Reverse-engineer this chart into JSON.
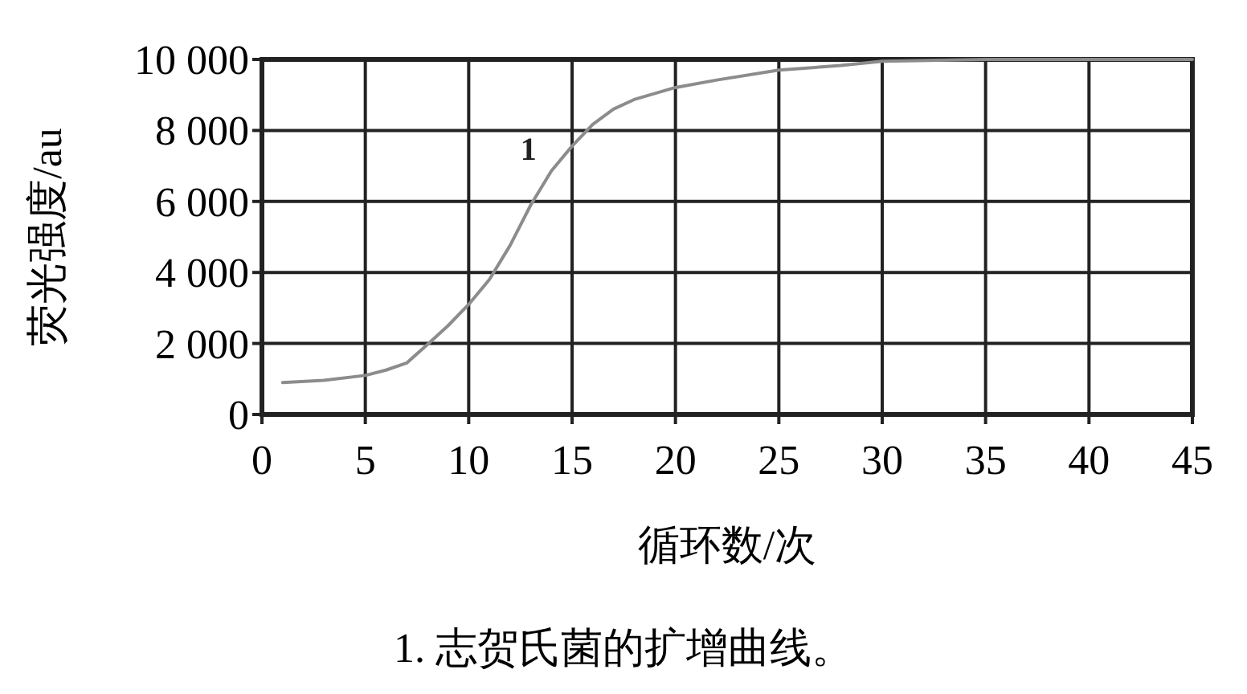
{
  "chart_data": {
    "type": "line",
    "xlabel": "循环数/次",
    "ylabel": "荧光强度/au",
    "x": [
      1,
      3,
      5,
      6,
      7,
      8,
      9,
      10,
      11,
      12,
      13,
      14,
      15,
      16,
      17,
      18,
      20,
      22,
      25,
      28,
      30,
      35,
      38.4,
      39.6,
      42,
      45
    ],
    "series": [
      {
        "name": "1",
        "color": "#8c8c8c",
        "values": [
          900,
          960,
          1100,
          1250,
          1450,
          1970,
          2500,
          3100,
          3800,
          4760,
          5900,
          6860,
          7560,
          8170,
          8600,
          8870,
          9210,
          9420,
          9700,
          9830,
          9950,
          10000,
          10000,
          10000,
          10000,
          10000
        ]
      }
    ],
    "xlim": [
      0,
      45
    ],
    "xticks": [
      0,
      5,
      10,
      15,
      20,
      25,
      30,
      35,
      40,
      45
    ],
    "ylim": [
      0,
      10000
    ],
    "yticks": [
      {
        "value": 0,
        "label": "0"
      },
      {
        "value": 2000,
        "label": "2 000"
      },
      {
        "value": 4000,
        "label": "4 000"
      },
      {
        "value": 6000,
        "label": "6 000"
      },
      {
        "value": 8000,
        "label": "8 000"
      },
      {
        "value": 10000,
        "label": "10 000"
      }
    ],
    "grid": true,
    "annotations": [
      "1. 志贺氏菌的扩增曲线。"
    ]
  }
}
